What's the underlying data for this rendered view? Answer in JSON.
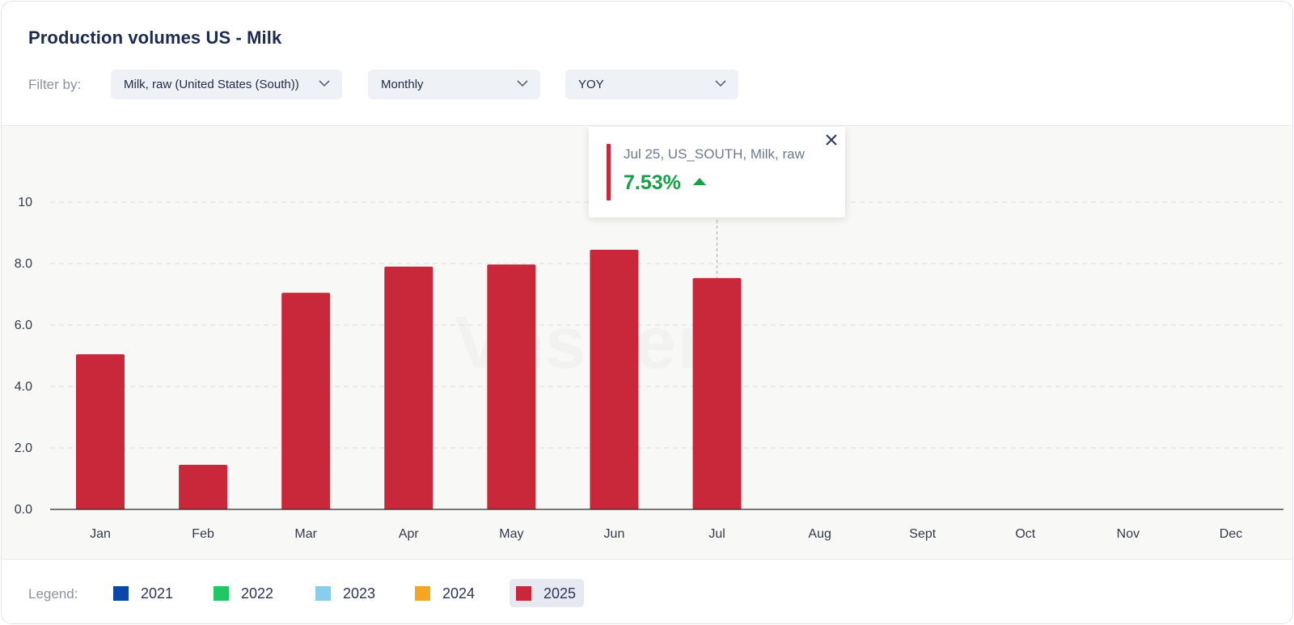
{
  "header": {
    "title": "Production volumes US - Milk",
    "filter_label": "Filter by:",
    "filters": [
      {
        "value": "Milk, raw (United States (South))"
      },
      {
        "value": "Monthly"
      },
      {
        "value": "YOY"
      }
    ]
  },
  "tooltip": {
    "label": "Jul 25, US_SOUTH, Milk, raw",
    "value": "7.53%",
    "direction": "up",
    "marker_color": "#c8283a",
    "value_color": "#15a045"
  },
  "legend": {
    "label": "Legend:",
    "items": [
      {
        "name": "2021",
        "color": "#0a47a9",
        "active": false
      },
      {
        "name": "2022",
        "color": "#21c764",
        "active": false
      },
      {
        "name": "2023",
        "color": "#87ceeb",
        "active": false
      },
      {
        "name": "2024",
        "color": "#f5a623",
        "active": false
      },
      {
        "name": "2025",
        "color": "#c8283a",
        "active": true
      }
    ]
  },
  "chart_data": {
    "type": "bar",
    "categories": [
      "Jan",
      "Feb",
      "Mar",
      "Apr",
      "May",
      "Jun",
      "Jul",
      "Aug",
      "Sept",
      "Oct",
      "Nov",
      "Dec"
    ],
    "series": [
      {
        "name": "2025",
        "color": "#c8283a",
        "values": [
          5.05,
          1.45,
          7.05,
          7.9,
          7.97,
          8.45,
          7.53,
          null,
          null,
          null,
          null,
          null
        ]
      }
    ],
    "y_ticks": [
      "0.0",
      "2.0",
      "4.0",
      "6.0",
      "8.0",
      "10"
    ],
    "ylim": [
      0,
      10
    ],
    "grid": true,
    "highlight_category": "Jul"
  }
}
